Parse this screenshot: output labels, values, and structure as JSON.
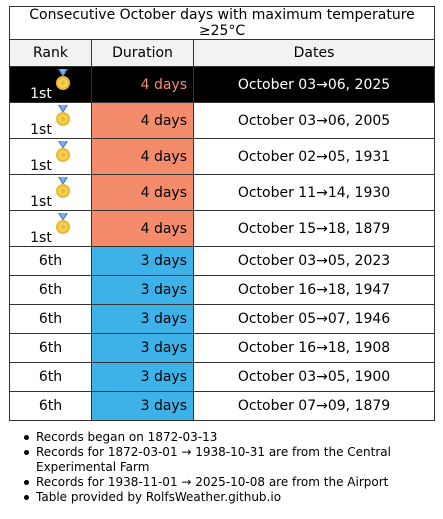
{
  "title": "Consecutive October days with maximum temperature ≥25°C",
  "headers": {
    "rank": "Rank",
    "duration": "Duration",
    "dates": "Dates"
  },
  "colors": {
    "four_day": "#f48c6c",
    "three_day": "#3cb2e8",
    "highlight_bg": "#000000",
    "highlight_text": "#ffffff"
  },
  "rows": [
    {
      "rank": "1st",
      "medal": "gold-medal-icon",
      "duration": "4 days",
      "dates": "October 03→06, 2025",
      "highlight": true
    },
    {
      "rank": "1st",
      "medal": "gold-medal-icon",
      "duration": "4 days",
      "dates": "October 03→06, 2005"
    },
    {
      "rank": "1st",
      "medal": "gold-medal-icon",
      "duration": "4 days",
      "dates": "October 02→05, 1931"
    },
    {
      "rank": "1st",
      "medal": "gold-medal-icon",
      "duration": "4 days",
      "dates": "October 11→14, 1930"
    },
    {
      "rank": "1st",
      "medal": "gold-medal-icon",
      "duration": "4 days",
      "dates": "October 15→18, 1879"
    },
    {
      "rank": "6th",
      "duration": "3 days",
      "dates": "October 03→05, 2023"
    },
    {
      "rank": "6th",
      "duration": "3 days",
      "dates": "October 16→18, 1947"
    },
    {
      "rank": "6th",
      "duration": "3 days",
      "dates": "October 05→07, 1946"
    },
    {
      "rank": "6th",
      "duration": "3 days",
      "dates": "October 16→18, 1908"
    },
    {
      "rank": "6th",
      "duration": "3 days",
      "dates": "October 03→05, 1900"
    },
    {
      "rank": "6th",
      "duration": "3 days",
      "dates": "October 07→09, 1879"
    }
  ],
  "notes": [
    "Records began on 1872-03-13",
    "Records for 1872-03-01 → 1938-10-31 are from the Central Experimental Farm",
    "Records for 1938-11-01 → 2025-10-08 are from the Airport",
    "Table provided by RolfsWeather.github.io"
  ]
}
